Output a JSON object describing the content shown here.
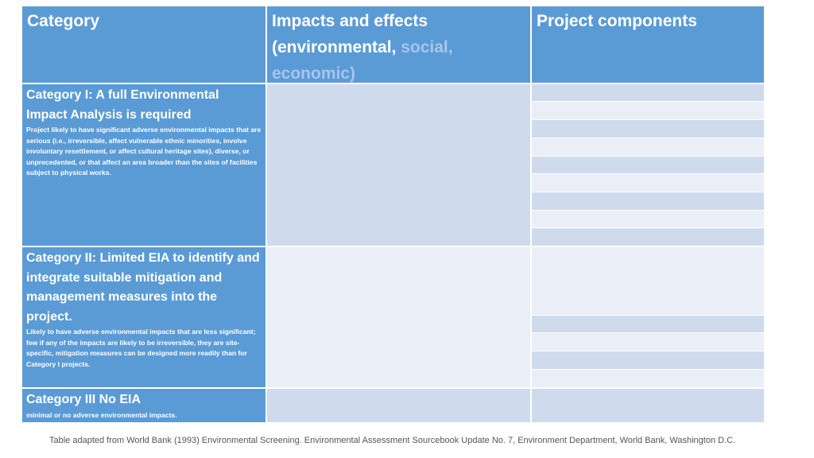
{
  "table": {
    "header": [
      "Category",
      [
        "Impacts and effects",
        "(environmental,",
        "social,",
        "economic)"
      ],
      "Project components"
    ],
    "rows": [
      {
        "title": "Category I: A full Environmental Impact Analysis is required",
        "description": "Project likely to have significant adverse environmental impacts that are serious (i.e., irreversible, affect vulnerable ethnic minorities, involve involuntary resettlement, or affect cultural heritage sites), diverse, or unprecedented, or that affect an area broader than the sites of facilities subject to physical works."
      },
      {
        "title": "Category II: Limited EIA to identify and integrate suitable mitigation and management measures into the project.",
        "description": "Likely to have adverse environmental impacts that are less significant; few if any of the impacts are likely to be irreversible, they are site-specific, mitigation measures can be designed more readily than for Category I projects."
      },
      {
        "title": "Category III No EIA",
        "description": "minimal or no adverse environmental impacts."
      }
    ]
  },
  "caption": "Table adapted from World Bank (1993) Environmental Screening. Environmental Assessment Sourcebook Update No. 7, Environment Department, World Bank, Washington D.C."
}
